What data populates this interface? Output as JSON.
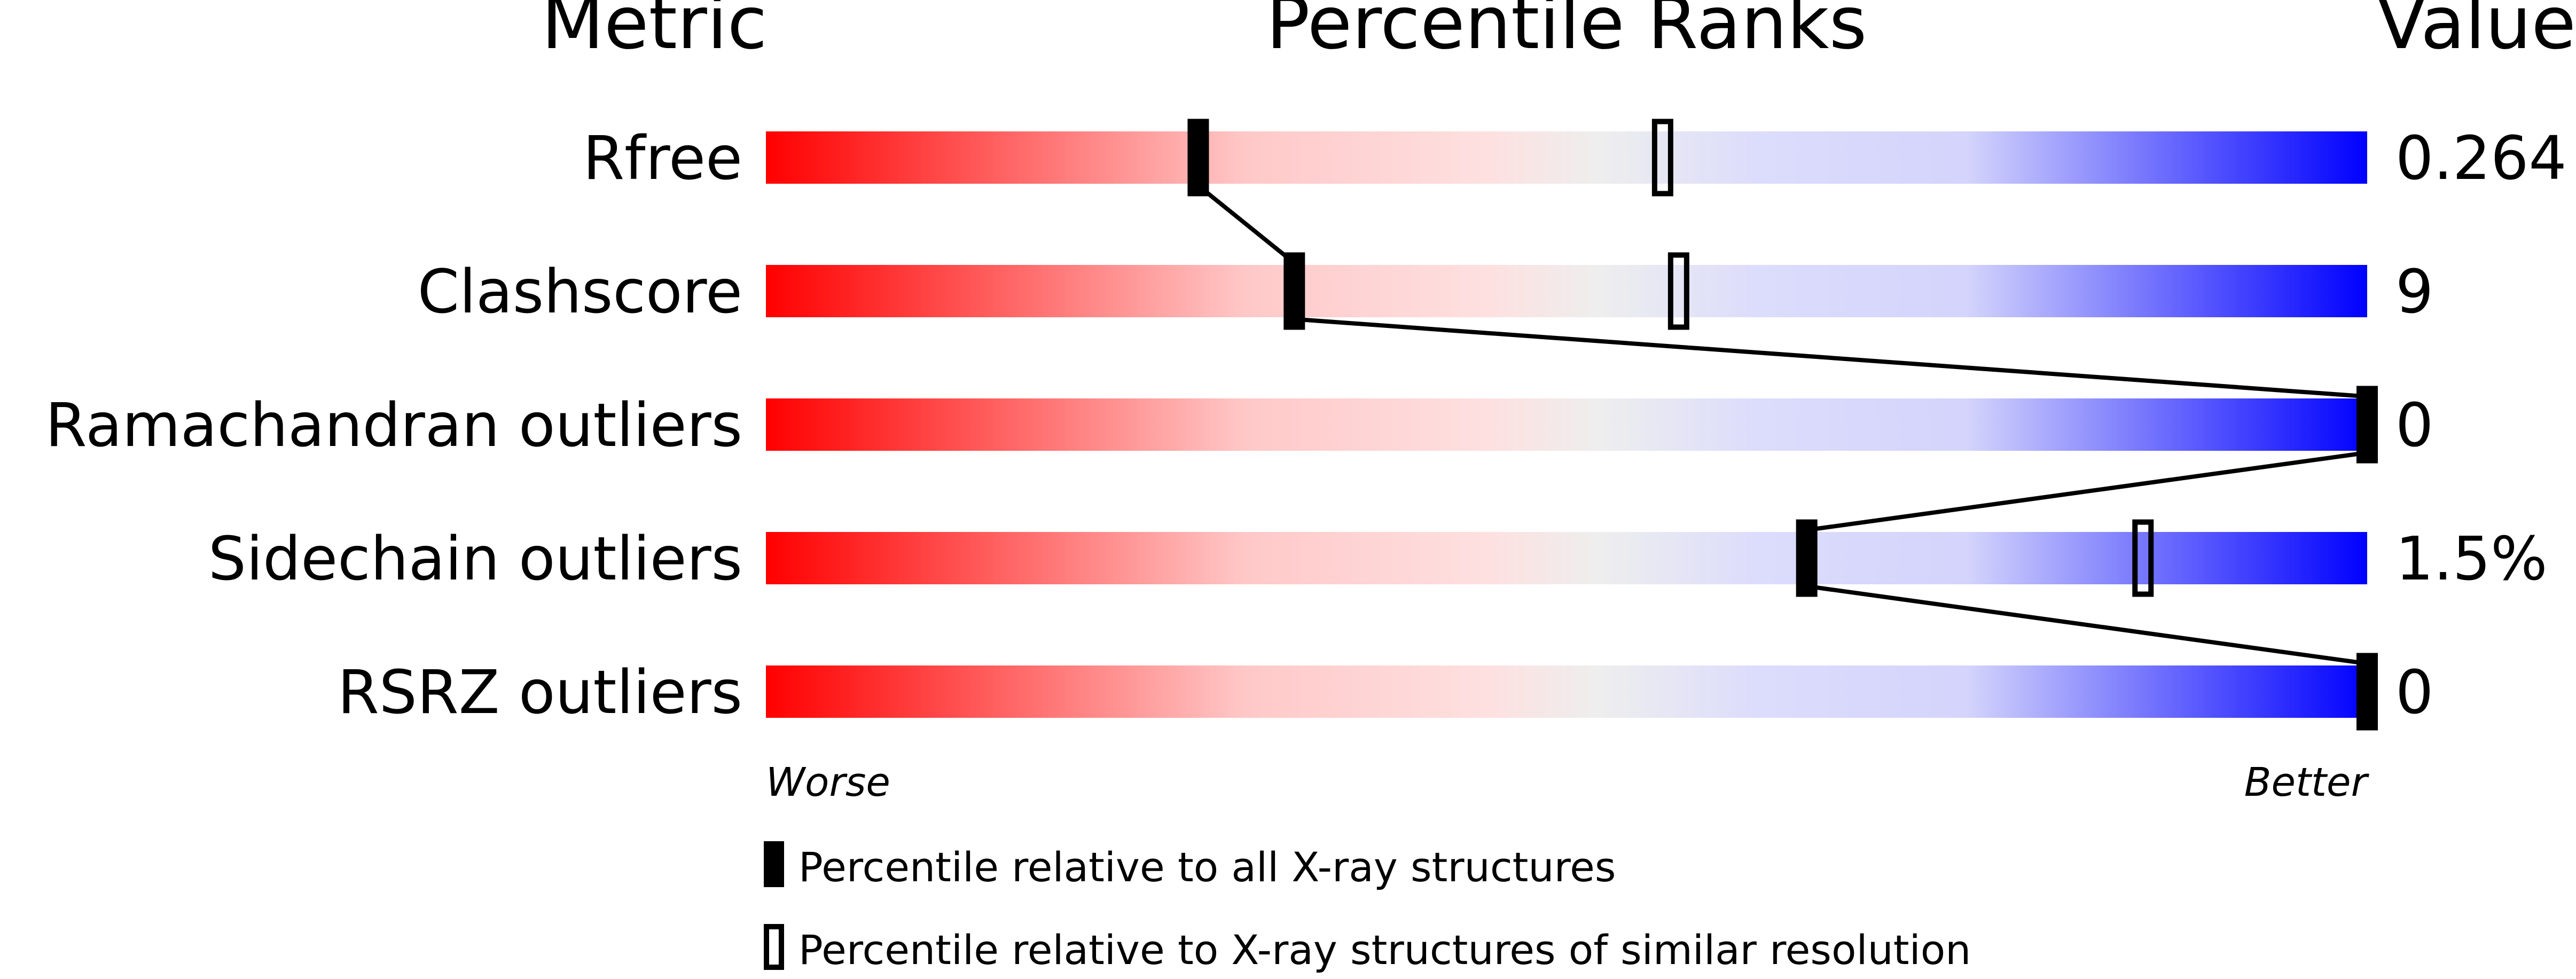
{
  "headers": {
    "metric": "Metric",
    "percentile": "Percentile Ranks",
    "value": "Value"
  },
  "axis": {
    "worse": "Worse",
    "better": "Better"
  },
  "legend": {
    "all": "Percentile relative to all X-ray structures",
    "similar": "Percentile relative to X-ray structures of similar resolution"
  },
  "colors": {
    "worse": "#ff0000",
    "middle": "#eeeeee",
    "better": "#0000ff",
    "marker": "#000000"
  },
  "chart_data": {
    "type": "percentile-slider",
    "xlim": [
      0,
      100
    ],
    "rows": [
      {
        "metric": "Rfree",
        "value": "0.264",
        "percentile_all": 27,
        "percentile_similar": 56
      },
      {
        "metric": "Clashscore",
        "value": "9",
        "percentile_all": 33,
        "percentile_similar": 57
      },
      {
        "metric": "Ramachandran outliers",
        "value": "0",
        "percentile_all": 100,
        "percentile_similar": null
      },
      {
        "metric": "Sidechain outliers",
        "value": "1.5%",
        "percentile_all": 65,
        "percentile_similar": 86
      },
      {
        "metric": "RSRZ outliers",
        "value": "0",
        "percentile_all": 100,
        "percentile_similar": null
      }
    ]
  }
}
